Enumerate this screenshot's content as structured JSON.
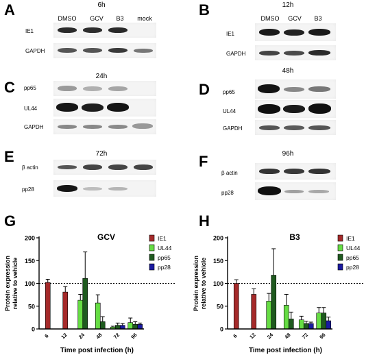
{
  "panels": {
    "A": {
      "letter": "A",
      "time": "6h",
      "conditions": [
        "DMSO",
        "GCV",
        "B3",
        "mock"
      ],
      "rows": [
        "IE1",
        "GAPDH"
      ]
    },
    "B": {
      "letter": "B",
      "time": "12h",
      "conditions": [
        "DMSO",
        "GCV",
        "B3"
      ],
      "rows": [
        "IE1",
        "GAPDH"
      ]
    },
    "C": {
      "letter": "C",
      "time": "24h",
      "rows": [
        "pp65",
        "UL44",
        "GAPDH"
      ]
    },
    "D": {
      "letter": "D",
      "time": "48h",
      "rows": [
        "pp65",
        "UL44",
        "GAPDH"
      ]
    },
    "E": {
      "letter": "E",
      "time": "72h",
      "rows": [
        "β actin",
        "pp28"
      ]
    },
    "F": {
      "letter": "F",
      "time": "96h",
      "rows": [
        "β actin",
        "pp28"
      ]
    },
    "G": {
      "letter": "G"
    },
    "H": {
      "letter": "H"
    }
  },
  "band_colors": {
    "dark": "#1a1a1a",
    "medium": "#555555",
    "light": "#9a9a9a",
    "faint": "#cfcfcf"
  },
  "chart_data": [
    {
      "type": "bar",
      "title": "GCV",
      "xlabel": "Time post infection (h)",
      "ylabel": "Protein expression relative to vehicle",
      "categories": [
        "6",
        "12",
        "24",
        "48",
        "72",
        "96"
      ],
      "ylim": [
        0,
        200
      ],
      "yticks": [
        0,
        50,
        100,
        150,
        200
      ],
      "reference_line": 100,
      "grid": false,
      "legend_position": "top-right",
      "series": [
        {
          "name": "IE1",
          "color": "#a52a2a",
          "values": [
            102,
            81,
            null,
            null,
            null,
            null
          ],
          "errors": [
            7,
            12,
            null,
            null,
            null,
            null
          ]
        },
        {
          "name": "UL44",
          "color": "#66dd44",
          "values": [
            null,
            null,
            63,
            57,
            4,
            14
          ],
          "errors": [
            null,
            null,
            13,
            18,
            2,
            10
          ]
        },
        {
          "name": "pp65",
          "color": "#1f5a1f",
          "values": [
            null,
            null,
            111,
            16,
            8,
            10
          ],
          "errors": [
            null,
            null,
            58,
            11,
            5,
            6
          ]
        },
        {
          "name": "pp28",
          "color": "#1a1aa0",
          "values": [
            null,
            null,
            null,
            null,
            8,
            10
          ],
          "errors": [
            null,
            null,
            null,
            null,
            4,
            3
          ]
        }
      ]
    },
    {
      "type": "bar",
      "title": "B3",
      "xlabel": "Time post infection (h)",
      "ylabel": "Protein expression relative to vehicle",
      "categories": [
        "6",
        "12",
        "24",
        "48",
        "72",
        "96"
      ],
      "ylim": [
        0,
        200
      ],
      "yticks": [
        0,
        50,
        100,
        150,
        200
      ],
      "reference_line": 100,
      "grid": false,
      "legend_position": "top-right",
      "series": [
        {
          "name": "IE1",
          "color": "#a52a2a",
          "values": [
            100,
            76,
            null,
            null,
            null,
            null
          ],
          "errors": [
            8,
            12,
            null,
            null,
            null,
            null
          ]
        },
        {
          "name": "UL44",
          "color": "#66dd44",
          "values": [
            null,
            null,
            61,
            52,
            20,
            35
          ],
          "errors": [
            null,
            null,
            17,
            24,
            8,
            12
          ]
        },
        {
          "name": "pp65",
          "color": "#1f5a1f",
          "values": [
            null,
            null,
            118,
            22,
            12,
            35
          ],
          "errors": [
            null,
            null,
            58,
            15,
            5,
            12
          ]
        },
        {
          "name": "pp28",
          "color": "#1a1aa0",
          "values": [
            null,
            null,
            null,
            null,
            12,
            18
          ],
          "errors": [
            null,
            null,
            null,
            null,
            3,
            8
          ]
        }
      ]
    }
  ]
}
